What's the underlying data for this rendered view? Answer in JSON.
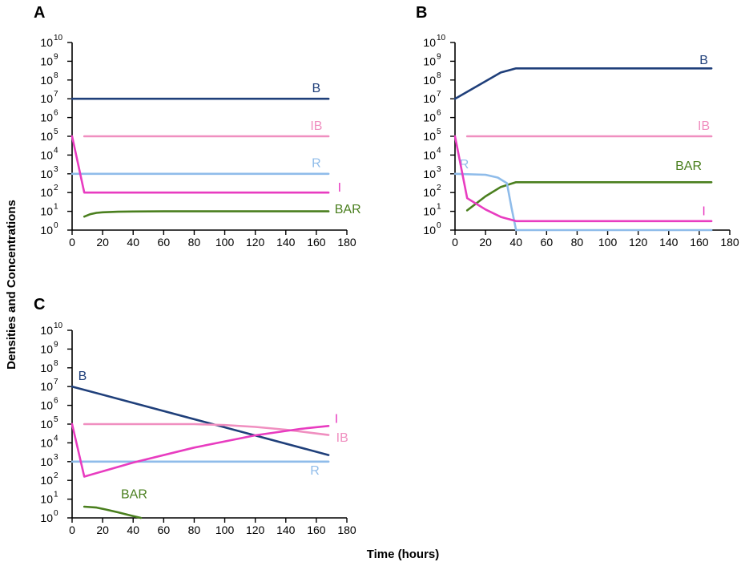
{
  "y_axis_title": "Densities and Concentrations",
  "x_axis_title": "Time (hours)",
  "chart_data": [
    {
      "type": "line",
      "panel": "A",
      "xlabel": "",
      "ylabel": "Densities and Concentrations",
      "xlim": [
        0,
        180
      ],
      "ylim_log10": [
        0,
        10
      ],
      "y_scale": "log10",
      "x_ticks": [
        0,
        20,
        40,
        60,
        80,
        100,
        120,
        140,
        160,
        180
      ],
      "y_ticks": [
        {
          "base": "10",
          "exp": "0"
        },
        {
          "base": "10",
          "exp": "1"
        },
        {
          "base": "10",
          "exp": "2"
        },
        {
          "base": "10",
          "exp": "3"
        },
        {
          "base": "10",
          "exp": "4"
        },
        {
          "base": "10",
          "exp": "5"
        },
        {
          "base": "10",
          "exp": "6"
        },
        {
          "base": "10",
          "exp": "7"
        },
        {
          "base": "10",
          "exp": "8"
        },
        {
          "base": "10",
          "exp": "9"
        },
        {
          "base": "10 ",
          "exp": "10"
        }
      ],
      "series": [
        {
          "name": "B",
          "color": "#1f3f7a",
          "label_at": [
            160,
            7.35
          ],
          "label_anchor": "middle",
          "points": [
            [
              0,
              7
            ],
            [
              168,
              7
            ]
          ]
        },
        {
          "name": "IB",
          "color": "#f08fc0",
          "label_at": [
            160,
            5.35
          ],
          "label_anchor": "middle",
          "points": [
            [
              8,
              5
            ],
            [
              168,
              5
            ]
          ]
        },
        {
          "name": "R",
          "color": "#8fbcea",
          "label_at": [
            160,
            3.35
          ],
          "label_anchor": "middle",
          "points": [
            [
              0,
              3
            ],
            [
              168,
              3
            ]
          ]
        },
        {
          "name": "I",
          "color": "#e83cc0",
          "label_at": [
            174,
            2.05
          ],
          "label_anchor": "start",
          "points": [
            [
              0,
              5
            ],
            [
              8,
              2
            ],
            [
              168,
              2
            ]
          ]
        },
        {
          "name": "BAR",
          "color": "#4a7f1e",
          "label_at": [
            172,
            0.9
          ],
          "label_anchor": "start",
          "points": [
            [
              8,
              0.72
            ],
            [
              12,
              0.85
            ],
            [
              16,
              0.92
            ],
            [
              20,
              0.95
            ],
            [
              30,
              0.98
            ],
            [
              40,
              0.99
            ],
            [
              60,
              1
            ],
            [
              168,
              1
            ]
          ]
        }
      ]
    },
    {
      "type": "line",
      "panel": "B",
      "xlabel": "",
      "ylabel": "",
      "xlim": [
        0,
        180
      ],
      "ylim_log10": [
        0,
        10
      ],
      "y_scale": "log10",
      "x_ticks": [
        0,
        20,
        40,
        60,
        80,
        100,
        120,
        140,
        160,
        180
      ],
      "y_ticks": [
        {
          "base": "10",
          "exp": "0"
        },
        {
          "base": "10",
          "exp": "1"
        },
        {
          "base": "10",
          "exp": "2"
        },
        {
          "base": "10",
          "exp": "3"
        },
        {
          "base": "10",
          "exp": "4"
        },
        {
          "base": "10",
          "exp": "5"
        },
        {
          "base": "10",
          "exp": "6"
        },
        {
          "base": "10",
          "exp": "7"
        },
        {
          "base": "10",
          "exp": "8"
        },
        {
          "base": "10",
          "exp": "9"
        },
        {
          "base": "10 ",
          "exp": "10"
        }
      ],
      "series": [
        {
          "name": "B",
          "color": "#1f3f7a",
          "label_at": [
            163,
            8.85
          ],
          "label_anchor": "middle",
          "points": [
            [
              0,
              7
            ],
            [
              30,
              8.4
            ],
            [
              40,
              8.62
            ],
            [
              168,
              8.62
            ]
          ]
        },
        {
          "name": "IB",
          "color": "#f08fc0",
          "label_at": [
            163,
            5.35
          ],
          "label_anchor": "middle",
          "points": [
            [
              8,
              5
            ],
            [
              168,
              5
            ]
          ]
        },
        {
          "name": "BAR",
          "color": "#4a7f1e",
          "label_at": [
            153,
            3.2
          ],
          "label_anchor": "middle",
          "points": [
            [
              8,
              1.05
            ],
            [
              20,
              1.8
            ],
            [
              30,
              2.3
            ],
            [
              40,
              2.55
            ],
            [
              80,
              2.55
            ],
            [
              168,
              2.55
            ]
          ]
        },
        {
          "name": "R",
          "color": "#8fbcea",
          "label_at": [
            3,
            3.3
          ],
          "label_anchor": "start",
          "points": [
            [
              0,
              3
            ],
            [
              20,
              2.95
            ],
            [
              28,
              2.8
            ],
            [
              34,
              2.5
            ],
            [
              37,
              1.2
            ],
            [
              40,
              0
            ],
            [
              168,
              0
            ]
          ]
        },
        {
          "name": "I",
          "color": "#e83cc0",
          "label_at": [
            163,
            0.8
          ],
          "label_anchor": "middle",
          "points": [
            [
              0,
              5
            ],
            [
              8,
              1.7
            ],
            [
              20,
              1.1
            ],
            [
              30,
              0.7
            ],
            [
              40,
              0.48
            ],
            [
              168,
              0.48
            ]
          ]
        }
      ]
    },
    {
      "type": "line",
      "panel": "C",
      "xlabel": "Time (hours)",
      "ylabel": "",
      "xlim": [
        0,
        180
      ],
      "ylim_log10": [
        0,
        10
      ],
      "y_scale": "log10",
      "x_ticks": [
        0,
        20,
        40,
        60,
        80,
        100,
        120,
        140,
        160,
        180
      ],
      "y_ticks": [
        {
          "base": "10",
          "exp": "0"
        },
        {
          "base": "10",
          "exp": "1"
        },
        {
          "base": "10",
          "exp": "2"
        },
        {
          "base": "10",
          "exp": "3"
        },
        {
          "base": "10",
          "exp": "4"
        },
        {
          "base": "10",
          "exp": "5"
        },
        {
          "base": "10",
          "exp": "6"
        },
        {
          "base": "10",
          "exp": "7"
        },
        {
          "base": "10",
          "exp": "8"
        },
        {
          "base": "10",
          "exp": "9"
        },
        {
          "base": "10 ",
          "exp": "10"
        }
      ],
      "series": [
        {
          "name": "B",
          "color": "#1f3f7a",
          "label_at": [
            4,
            7.35
          ],
          "label_anchor": "start",
          "points": [
            [
              0,
              7
            ],
            [
              168,
              3.35
            ]
          ]
        },
        {
          "name": "IB",
          "color": "#f08fc0",
          "label_at": [
            173,
            4.05
          ],
          "label_anchor": "start",
          "points": [
            [
              8,
              5
            ],
            [
              40,
              5
            ],
            [
              80,
              5
            ],
            [
              100,
              4.95
            ],
            [
              120,
              4.85
            ],
            [
              140,
              4.7
            ],
            [
              160,
              4.5
            ],
            [
              168,
              4.42
            ]
          ]
        },
        {
          "name": "R",
          "color": "#8fbcea",
          "label_at": [
            159,
            2.3
          ],
          "label_anchor": "middle",
          "points": [
            [
              0,
              3
            ],
            [
              168,
              3
            ]
          ]
        },
        {
          "name": "I",
          "color": "#e83cc0",
          "label_at": [
            172,
            5.07
          ],
          "label_anchor": "start",
          "points": [
            [
              0,
              5
            ],
            [
              8,
              2.2
            ],
            [
              40,
              2.95
            ],
            [
              80,
              3.75
            ],
            [
              120,
              4.4
            ],
            [
              150,
              4.75
            ],
            [
              168,
              4.9
            ]
          ]
        },
        {
          "name": "BAR",
          "color": "#4a7f1e",
          "label_at": [
            32,
            1.05
          ],
          "label_anchor": "start",
          "points": [
            [
              8,
              0.6
            ],
            [
              16,
              0.55
            ],
            [
              22,
              0.45
            ],
            [
              30,
              0.3
            ],
            [
              40,
              0.1
            ],
            [
              45,
              0
            ]
          ]
        }
      ]
    }
  ]
}
